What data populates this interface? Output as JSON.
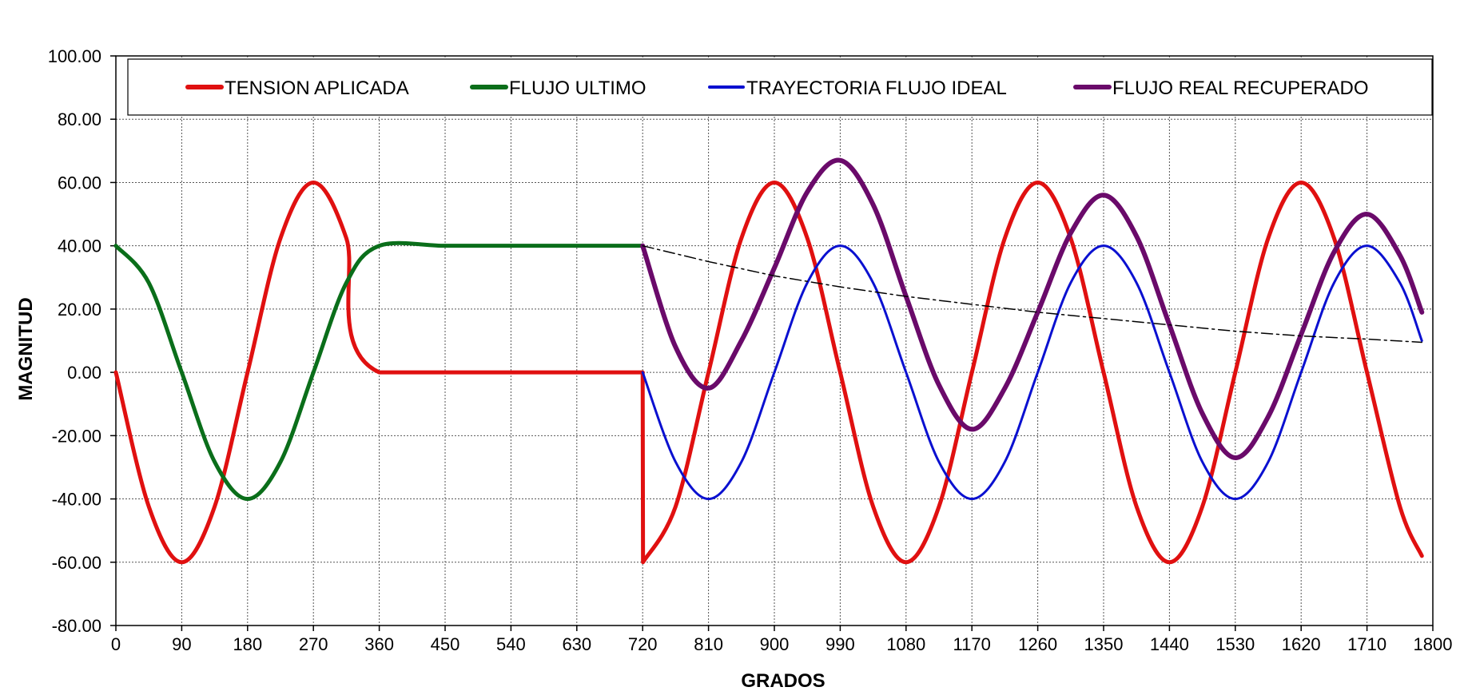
{
  "chart_data": {
    "type": "line",
    "title": "",
    "xlabel": "GRADOS",
    "ylabel": "MAGNITUD",
    "xlim": [
      0,
      1800
    ],
    "ylim": [
      -80,
      100
    ],
    "x_ticks": [
      "0",
      "90",
      "180",
      "270",
      "360",
      "450",
      "540",
      "630",
      "720",
      "810",
      "900",
      "990",
      "1080",
      "1170",
      "1260",
      "1350",
      "1440",
      "1530",
      "1620",
      "1710",
      "1800"
    ],
    "y_ticks": [
      "100.00",
      "80.00",
      "60.00",
      "40.00",
      "20.00",
      "0.00",
      "-20.00",
      "-40.00",
      "-60.00",
      "-80.00"
    ],
    "grid": true,
    "legend_position": "top",
    "series": [
      {
        "name": "TENSION APLICADA",
        "color": "#e01010",
        "x": [
          0,
          45,
          90,
          135,
          180,
          225,
          270,
          315,
          360,
          720,
          720.5,
          765,
          810,
          855,
          900,
          945,
          990,
          1035,
          1080,
          1125,
          1170,
          1215,
          1260,
          1305,
          1350,
          1395,
          1440,
          1485,
          1530,
          1575,
          1620,
          1665,
          1710,
          1755,
          1785
        ],
        "y": [
          0,
          -42.4,
          -60,
          -42.4,
          0,
          42.4,
          60,
          42.4,
          0,
          0,
          -60,
          -42.4,
          0,
          42.4,
          60,
          42.4,
          0,
          -42.4,
          -60,
          -42.4,
          0,
          42.4,
          60,
          42.4,
          0,
          -42.4,
          -60,
          -42.4,
          0,
          42.4,
          60,
          42.4,
          0,
          -42.4,
          -58
        ]
      },
      {
        "name": "FLUJO ULTIMO",
        "color": "#0a6e1a",
        "x": [
          0,
          45,
          90,
          135,
          180,
          225,
          270,
          315,
          360,
          450,
          540,
          630,
          720
        ],
        "y": [
          40,
          28.3,
          0,
          -28.3,
          -40,
          -28.3,
          0,
          28.3,
          40,
          40,
          40,
          40,
          40
        ]
      },
      {
        "name": "TRAYECTORIA FLUJO IDEAL",
        "color": "#0a10d0",
        "x": [
          720,
          765,
          810,
          855,
          900,
          945,
          990,
          1035,
          1080,
          1125,
          1170,
          1215,
          1260,
          1305,
          1350,
          1395,
          1440,
          1485,
          1530,
          1575,
          1620,
          1665,
          1710,
          1755,
          1785
        ],
        "y": [
          0,
          -28.3,
          -40,
          -28.3,
          0,
          28.3,
          40,
          28.3,
          0,
          -28.3,
          -40,
          -28.3,
          0,
          28.3,
          40,
          28.3,
          0,
          -28.3,
          -40,
          -28.3,
          0,
          28.3,
          40,
          28.3,
          10
        ]
      },
      {
        "name": "FLUJO REAL RECUPERADO",
        "color": "#6a0a6a",
        "x": [
          720,
          765,
          810,
          855,
          900,
          945,
          990,
          1035,
          1080,
          1125,
          1170,
          1215,
          1260,
          1305,
          1350,
          1395,
          1440,
          1485,
          1530,
          1575,
          1620,
          1665,
          1710,
          1755,
          1785
        ],
        "y": [
          40,
          8,
          -5,
          10,
          33,
          57,
          67,
          53,
          24,
          -4,
          -18,
          -5,
          19,
          44,
          56,
          43,
          15,
          -13,
          -27,
          -14,
          12,
          38,
          50,
          37,
          19
        ]
      },
      {
        "name": "",
        "color": "#000000",
        "dashed": true,
        "x": [
          720,
          810,
          900,
          990,
          1080,
          1170,
          1260,
          1350,
          1440,
          1530,
          1620,
          1710,
          1785
        ],
        "y": [
          40,
          35,
          30.5,
          27,
          24,
          21.5,
          19,
          17,
          15,
          13,
          11.5,
          10.5,
          9.5
        ]
      }
    ]
  }
}
